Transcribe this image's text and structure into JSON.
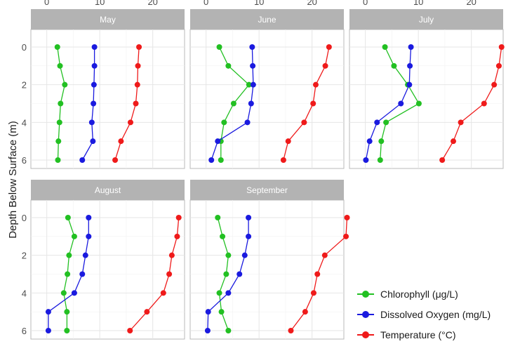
{
  "chart_data": {
    "type": "line",
    "ylabel": "Depth Below Surface (m)",
    "x_ticks": [
      0,
      10,
      20
    ],
    "y_ticks": [
      0,
      2,
      4,
      6
    ],
    "xlim": [
      -3,
      26
    ],
    "ylim": [
      0,
      6
    ],
    "grid": true,
    "legend_position": "bottom-right",
    "depths": [
      0,
      1,
      2,
      3,
      4,
      5,
      6
    ],
    "series_meta": [
      {
        "name": "Chlorophyll (μg/L)",
        "color": "#22c022"
      },
      {
        "name": "Dissolved Oxygen (mg/L)",
        "color": "#1a1adf"
      },
      {
        "name": "Temperature (°C)",
        "color": "#ef1a1a"
      }
    ],
    "panels": [
      {
        "title": "May",
        "series": [
          [
            2.0,
            2.5,
            3.4,
            2.6,
            2.4,
            2.2,
            2.1
          ],
          [
            9.0,
            9.0,
            8.9,
            8.8,
            8.5,
            8.7,
            6.7
          ],
          [
            17.4,
            17.2,
            17.1,
            16.8,
            15.8,
            14.0,
            12.9
          ]
        ]
      },
      {
        "title": "June",
        "series": [
          [
            2.5,
            4.2,
            8.1,
            5.2,
            3.4,
            2.8,
            2.8
          ],
          [
            8.7,
            8.8,
            8.9,
            8.5,
            7.8,
            2.2,
            1.0
          ],
          [
            23.2,
            22.5,
            20.7,
            20.2,
            18.5,
            15.5,
            14.6
          ]
        ]
      },
      {
        "title": "July",
        "series": [
          [
            3.7,
            5.4,
            8.0,
            10.1,
            3.9,
            3.0,
            2.8
          ],
          [
            8.6,
            8.4,
            8.3,
            6.7,
            2.2,
            0.8,
            0.1
          ],
          [
            25.7,
            25.2,
            24.3,
            22.4,
            18.0,
            16.6,
            14.5
          ]
        ]
      },
      {
        "title": "August",
        "series": [
          [
            4.0,
            5.2,
            4.2,
            3.9,
            3.2,
            3.8,
            3.8
          ],
          [
            7.9,
            7.9,
            7.3,
            6.7,
            5.2,
            0.3,
            0.3
          ],
          [
            24.9,
            24.6,
            23.6,
            23.1,
            22.0,
            18.9,
            15.7
          ]
        ]
      },
      {
        "title": "September",
        "series": [
          [
            2.2,
            3.1,
            4.2,
            3.8,
            2.5,
            2.9,
            4.2
          ],
          [
            8.0,
            8.0,
            7.3,
            6.3,
            4.2,
            0.4,
            0.3
          ],
          [
            26.6,
            26.4,
            22.4,
            21.0,
            20.3,
            18.7,
            16.0
          ]
        ]
      }
    ]
  }
}
